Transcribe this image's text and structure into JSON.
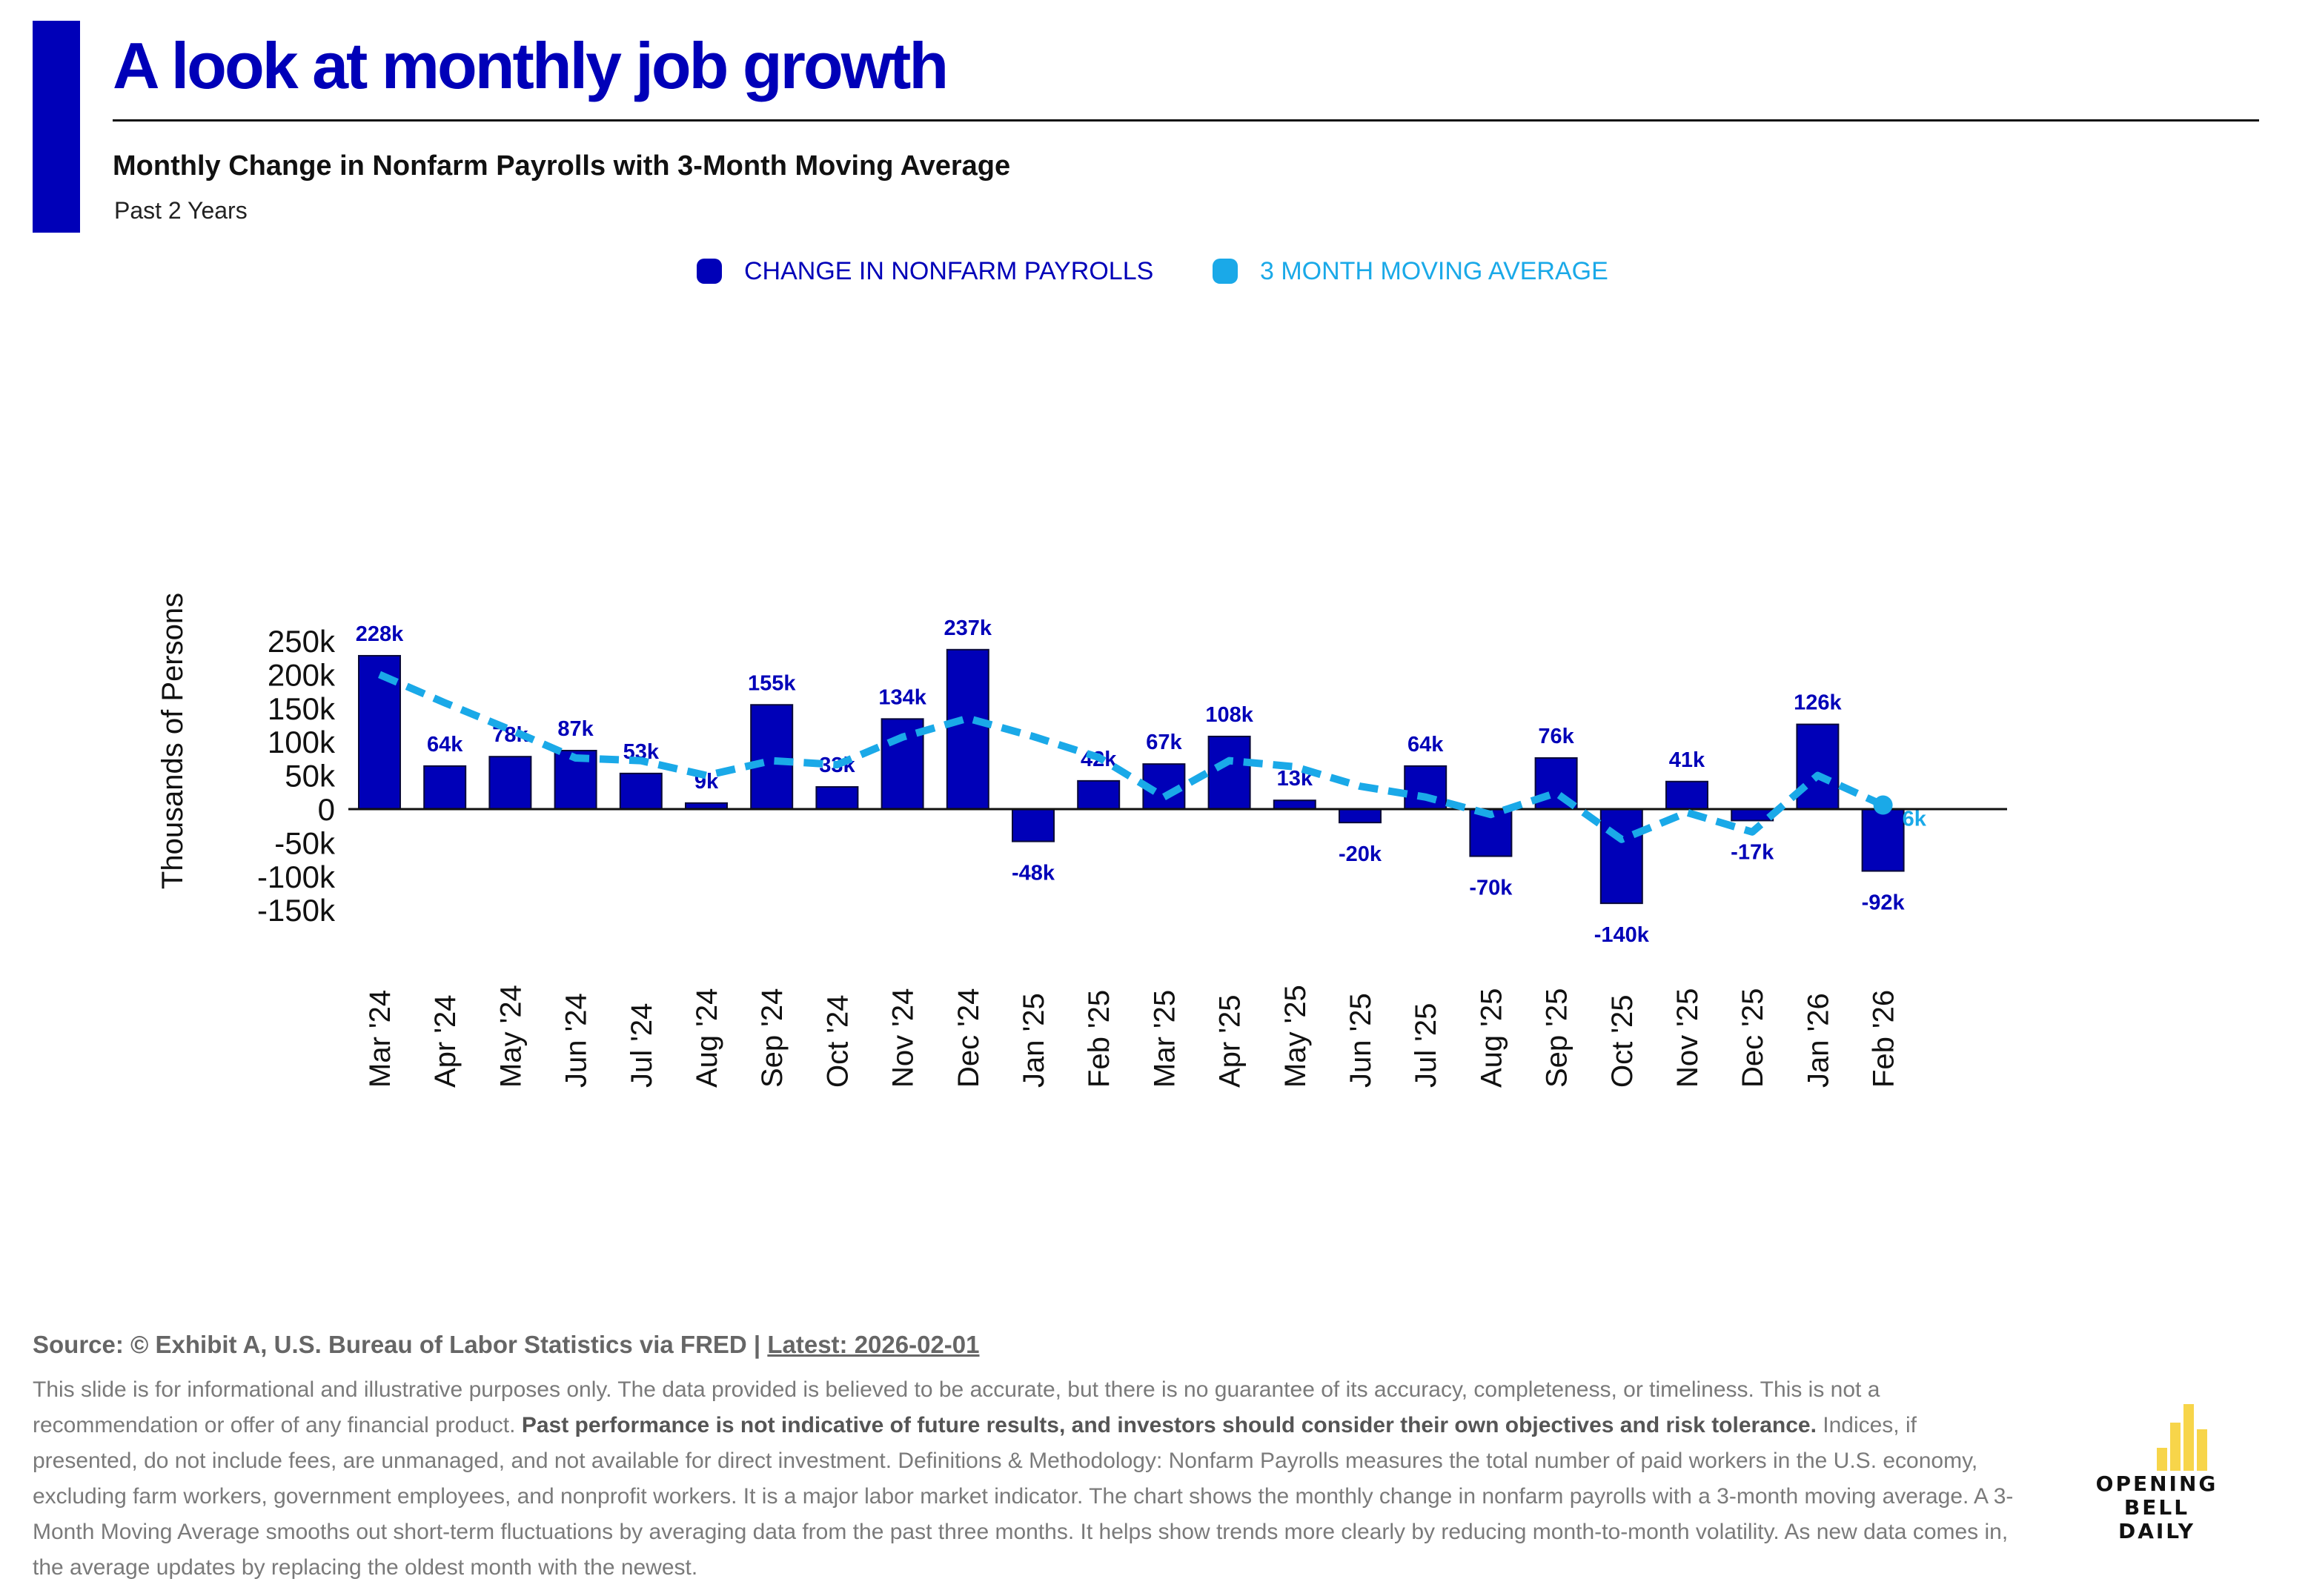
{
  "header": {
    "title": "A look at monthly job growth",
    "subtitle": "Monthly Change in Nonfarm Payrolls with 3-Month Moving Average",
    "period": "Past 2 Years"
  },
  "colors": {
    "brand": "#0000b8",
    "bar": "#0000b8",
    "moving_average": "#1aa9e8",
    "logo": "#f7d54a"
  },
  "chart_data": {
    "type": "bar",
    "title": "Monthly Change in Nonfarm Payrolls with 3-Month Moving Average",
    "ylabel": "Thousands of Persons",
    "xlabel": "",
    "ylim": [
      -150,
      250
    ],
    "yticks": [
      250,
      200,
      150,
      100,
      50,
      0,
      -50,
      -100,
      -150
    ],
    "ytick_labels": [
      "250k",
      "200k",
      "150k",
      "100k",
      "50k",
      "0",
      "-50k",
      "-100k",
      "-150k"
    ],
    "grid": false,
    "legend_position": "top-center",
    "categories": [
      "Mar '24",
      "Apr '24",
      "May '24",
      "Jun '24",
      "Jul '24",
      "Aug '24",
      "Sep '24",
      "Oct '24",
      "Nov '24",
      "Dec '24",
      "Jan '25",
      "Feb '25",
      "Mar '25",
      "Apr '25",
      "May '25",
      "Jun '25",
      "Jul '25",
      "Aug '25",
      "Sep '25",
      "Oct '25",
      "Nov '25",
      "Dec '25",
      "Jan '26",
      "Feb '26"
    ],
    "series": [
      {
        "name": "CHANGE IN NONFARM PAYROLLS",
        "kind": "bar",
        "color": "#0000b8",
        "values": [
          228,
          64,
          78,
          87,
          53,
          9,
          155,
          33,
          134,
          237,
          -48,
          42,
          67,
          108,
          13,
          -20,
          64,
          -70,
          76,
          -140,
          41,
          -17,
          126,
          -92
        ],
        "labels": [
          "228k",
          "64k",
          "78k",
          "87k",
          "53k",
          "9k",
          "155k",
          "33k",
          "134k",
          "237k",
          "-48k",
          "42k",
          "67k",
          "108k",
          "13k",
          "-20k",
          "64k",
          "-70k",
          "76k",
          "-140k",
          "41k",
          "-17k",
          "126k",
          "-92k"
        ]
      },
      {
        "name": "3 MONTH MOVING AVERAGE",
        "kind": "line",
        "style": "dashed",
        "color": "#1aa9e8",
        "values": [
          200,
          158,
          118,
          76,
          72,
          50,
          72,
          66,
          107,
          135,
          108,
          77,
          18,
          72,
          63,
          34,
          18,
          -8,
          24,
          -45,
          -5,
          -34,
          50,
          6
        ],
        "last_label": "6k"
      }
    ]
  },
  "footer": {
    "source_text": "Source: © Exhibit A, U.S. Bureau of Labor Statistics via FRED | ",
    "latest_text": "Latest: 2026-02-01",
    "disclaimer_1": "This slide is for informational and illustrative purposes only. The data provided is believed to be accurate, but there is no guarantee of its accuracy, completeness, or timeliness. This is not a recommendation or offer of any financial product. ",
    "disclaimer_bold": "Past performance is not indicative of future results, and investors should consider their own objectives and risk tolerance.",
    "disclaimer_2": " Indices, if presented, do not include fees, are unmanaged, and not available for direct investment. Definitions & Methodology: Nonfarm Payrolls measures the total number of paid workers in the U.S. economy, excluding farm workers, government employees, and nonprofit workers. It is a major labor market indicator. The chart shows the monthly change in nonfarm payrolls with a 3-month moving average. A 3-Month Moving Average smooths out short-term fluctuations by averaging data from the past three months. It helps show trends more clearly by reducing month-to-month volatility. As new data comes in, the average updates by replacing the oldest month with the newest."
  },
  "logo": {
    "line1": "OPENING BELL",
    "line2": "DAILY",
    "bar_levels": [
      0.35,
      0.72,
      1.0,
      0.62
    ]
  }
}
